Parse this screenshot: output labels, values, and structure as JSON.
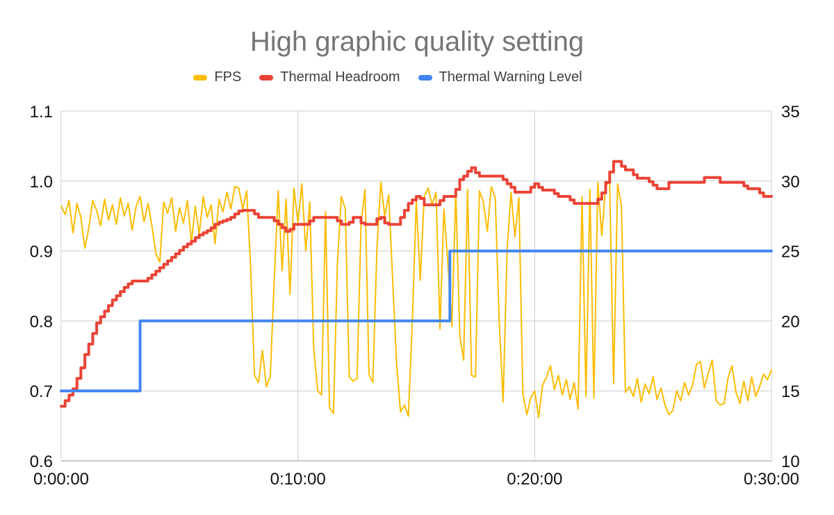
{
  "chart": {
    "title": "High graphic quality setting"
  },
  "colors": {
    "background": "#ffffff",
    "title_text": "#757575",
    "legend_text": "#3c4043",
    "tick_text": "#111111",
    "grid": "#cccccc",
    "baseline": "#c8c8c8",
    "fps": "#FBBC04",
    "thermal_headroom": "#EA4335",
    "thermal_warning": "#4285F4"
  },
  "chart_data": {
    "type": "line",
    "title": "High graphic quality setting",
    "xlabel": "",
    "ylabel": "",
    "grid": true,
    "legend_position": "top",
    "x_range_seconds": [
      0,
      1800
    ],
    "x_ticks": {
      "seconds": [
        0,
        600,
        1200,
        1800
      ],
      "labels": [
        "0:00:00",
        "0:10:00",
        "0:20:00",
        "0:30:00"
      ]
    },
    "axes": {
      "left": {
        "min": 0.6,
        "max": 1.1,
        "ticks": [
          0.6,
          0.7,
          0.8,
          0.9,
          1.0,
          1.1
        ],
        "labels": [
          "0.6",
          "0.7",
          "0.8",
          "0.9",
          "1.0",
          "1.1"
        ]
      },
      "right": {
        "min": 10,
        "max": 35,
        "ticks": [
          10,
          15,
          20,
          25,
          30,
          35
        ],
        "labels": [
          "10",
          "15",
          "20",
          "25",
          "30",
          "35"
        ]
      }
    },
    "series": [
      {
        "name": "FPS",
        "color": "#FBBC04",
        "axis": "right",
        "line_width": 2,
        "step": false,
        "sample_interval_seconds": 10,
        "values": [
          28.2,
          27.6,
          28.6,
          26.3,
          28.4,
          27.4,
          25.2,
          26.6,
          28.6,
          27.9,
          26.8,
          28.7,
          27.2,
          28.3,
          26.9,
          28.8,
          27.5,
          28.4,
          26.5,
          28.2,
          28.9,
          27.1,
          28.4,
          26.8,
          24.8,
          24.2,
          28.5,
          27.7,
          28.8,
          26.4,
          28.1,
          27.0,
          28.6,
          25.6,
          28.2,
          26.2,
          28.9,
          27.4,
          28.3,
          25.5,
          28.7,
          27.8,
          29.2,
          28.0,
          29.6,
          29.5,
          28.0,
          29.3,
          24.0,
          16.1,
          15.6,
          17.9,
          15.3,
          16.0,
          23.0,
          29.3,
          23.6,
          28.7,
          21.9,
          29.5,
          27.0,
          29.8,
          25.0,
          28.5,
          18.0,
          15.0,
          14.7,
          27.8,
          13.8,
          13.4,
          24.0,
          28.9,
          28.0,
          16.0,
          15.7,
          15.9,
          27.0,
          29.4,
          16.2,
          15.6,
          25.0,
          29.9,
          27.5,
          29.0,
          23.0,
          17.0,
          13.5,
          14.0,
          13.2,
          20.0,
          28.6,
          22.9,
          28.9,
          29.5,
          28.3,
          29.2,
          19.4,
          28.0,
          24.2,
          19.6,
          29.2,
          19.0,
          17.2,
          29.4,
          16.1,
          16.0,
          29.3,
          28.5,
          26.4,
          29.6,
          28.8,
          20.1,
          14.2,
          25.0,
          29.2,
          26.0,
          28.8,
          14.8,
          13.3,
          14.5,
          15.0,
          13.1,
          15.4,
          16.0,
          16.8,
          15.1,
          16.1,
          14.7,
          15.8,
          14.4,
          15.6,
          13.7,
          28.9,
          14.6,
          29.4,
          14.5,
          29.9,
          26.1,
          29.7,
          29.9,
          15.5,
          29.8,
          28.2,
          14.9,
          15.3,
          14.6,
          15.9,
          14.2,
          15.5,
          14.8,
          16.0,
          14.4,
          15.2,
          14.0,
          13.3,
          13.6,
          15.0,
          14.3,
          15.6,
          14.7,
          15.4,
          16.9,
          17.1,
          15.2,
          16.3,
          17.2,
          14.3,
          14.0,
          14.1,
          15.9,
          16.8,
          14.9,
          14.1,
          15.7,
          14.3,
          16.0,
          14.6,
          15.3,
          16.2,
          15.8,
          16.5
        ]
      },
      {
        "name": "Thermal Headroom",
        "color": "#EA4335",
        "axis": "left",
        "line_width": 4,
        "step": true,
        "sample_interval_seconds": 10,
        "values": [
          0.678,
          0.686,
          0.694,
          0.703,
          0.718,
          0.733,
          0.752,
          0.767,
          0.782,
          0.797,
          0.806,
          0.814,
          0.822,
          0.83,
          0.836,
          0.842,
          0.848,
          0.853,
          0.857,
          0.857,
          0.857,
          0.857,
          0.861,
          0.866,
          0.871,
          0.876,
          0.881,
          0.886,
          0.891,
          0.896,
          0.901,
          0.906,
          0.91,
          0.914,
          0.919,
          0.923,
          0.926,
          0.929,
          0.933,
          0.938,
          0.941,
          0.943,
          0.945,
          0.948,
          0.953,
          0.957,
          0.958,
          0.958,
          0.958,
          0.953,
          0.948,
          0.948,
          0.948,
          0.948,
          0.943,
          0.938,
          0.933,
          0.928,
          0.931,
          0.938,
          0.938,
          0.938,
          0.938,
          0.943,
          0.948,
          0.948,
          0.948,
          0.948,
          0.948,
          0.948,
          0.943,
          0.938,
          0.938,
          0.941,
          0.948,
          0.948,
          0.94,
          0.938,
          0.938,
          0.938,
          0.946,
          0.948,
          0.94,
          0.938,
          0.938,
          0.938,
          0.948,
          0.958,
          0.968,
          0.973,
          0.978,
          0.975,
          0.966,
          0.966,
          0.966,
          0.966,
          0.972,
          0.978,
          0.978,
          0.978,
          0.988,
          1.002,
          1.007,
          1.014,
          1.019,
          1.012,
          1.007,
          1.007,
          1.007,
          1.007,
          1.007,
          1.007,
          1.002,
          0.996,
          0.991,
          0.984,
          0.984,
          0.984,
          0.984,
          0.991,
          0.996,
          0.991,
          0.987,
          0.987,
          0.987,
          0.982,
          0.978,
          0.978,
          0.978,
          0.973,
          0.968,
          0.968,
          0.968,
          0.968,
          0.968,
          0.968,
          0.974,
          0.983,
          0.998,
          1.013,
          1.028,
          1.028,
          1.021,
          1.016,
          1.016,
          1.009,
          1.004,
          1.004,
          1.004,
          0.999,
          0.994,
          0.989,
          0.989,
          0.989,
          0.998,
          0.998,
          0.998,
          0.998,
          0.998,
          0.998,
          0.998,
          0.998,
          0.998,
          1.005,
          1.005,
          1.005,
          1.005,
          0.998,
          0.998,
          0.998,
          0.998,
          0.998,
          0.998,
          0.993,
          0.989,
          0.989,
          0.989,
          0.983,
          0.978,
          0.978,
          0.978
        ]
      },
      {
        "name": "Thermal Warning Level",
        "color": "#4285F4",
        "axis": "left",
        "line_width": 4,
        "step": false,
        "points": [
          [
            0,
            0.7
          ],
          [
            200,
            0.7
          ],
          [
            200,
            0.8
          ],
          [
            985,
            0.8
          ],
          [
            985,
            0.9
          ],
          [
            1800,
            0.9
          ]
        ]
      }
    ]
  }
}
